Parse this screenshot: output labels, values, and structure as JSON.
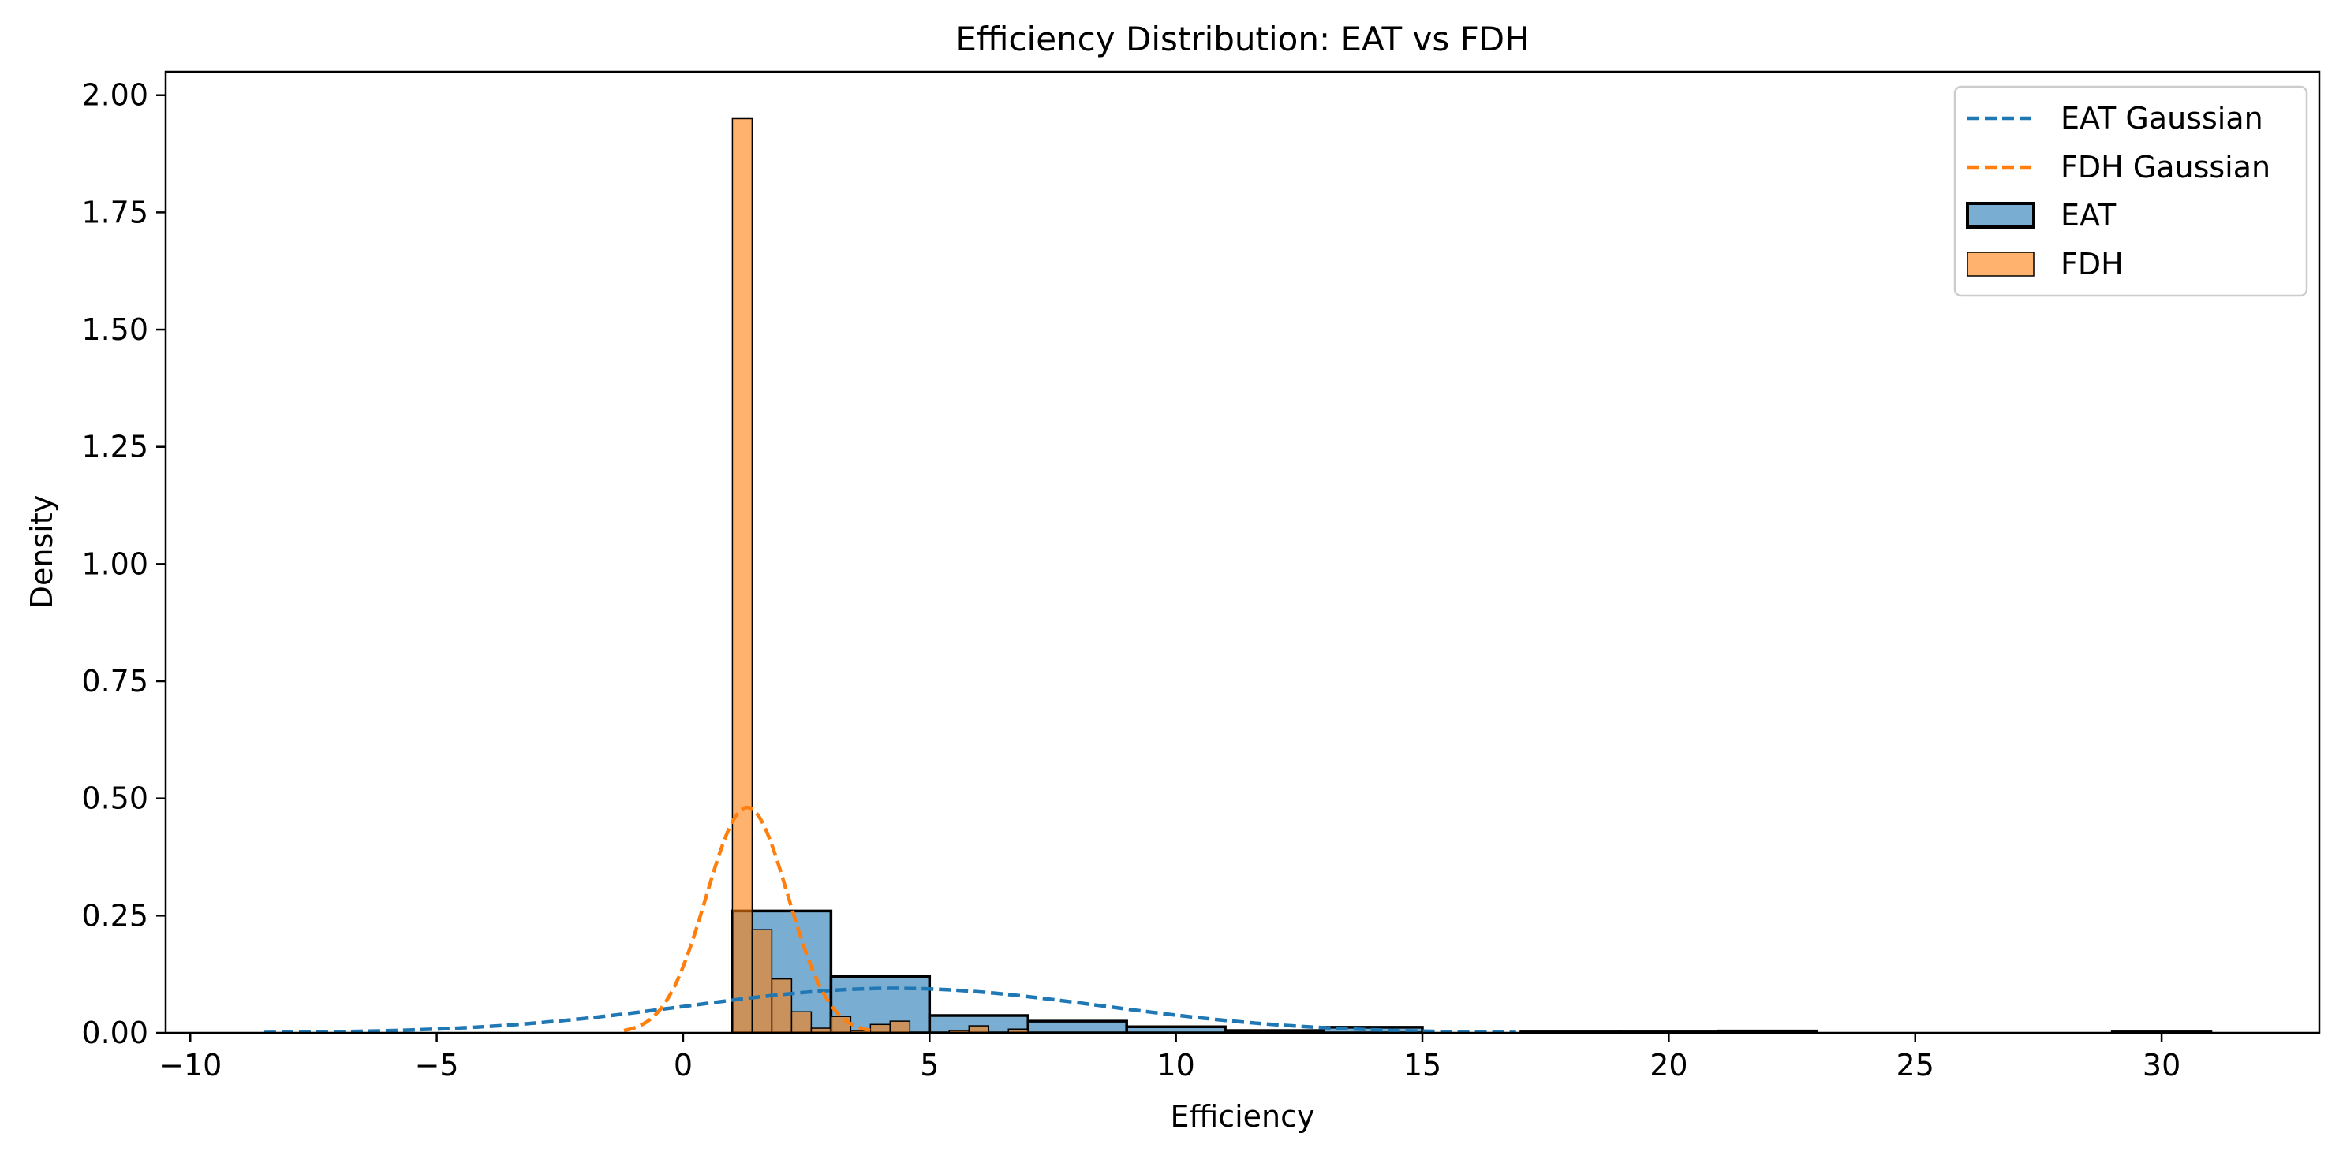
{
  "chart_data": {
    "type": "histogram",
    "title": "Efficiency Distribution: EAT vs FDH",
    "xlabel": "Efficiency",
    "ylabel": "Density",
    "xlim": [
      -10.5,
      33.2
    ],
    "ylim": [
      0,
      2.05
    ],
    "xticks": [
      -10,
      -5,
      0,
      5,
      10,
      15,
      20,
      25,
      30
    ],
    "xtick_labels": [
      "−10",
      "−5",
      "0",
      "5",
      "10",
      "15",
      "20",
      "25",
      "30"
    ],
    "yticks": [
      0,
      0.25,
      0.5,
      0.75,
      1.0,
      1.25,
      1.5,
      1.75,
      2.0
    ],
    "ytick_labels": [
      "0.00",
      "0.25",
      "0.50",
      "0.75",
      "1.00",
      "1.25",
      "1.50",
      "1.75",
      "2.00"
    ],
    "grid": false,
    "legend_position": "top-right",
    "legend": [
      {
        "label": "EAT Gaussian",
        "kind": "dashed-line",
        "color": "#1f77b4"
      },
      {
        "label": "FDH Gaussian",
        "kind": "dashed-line",
        "color": "#ff7f0e"
      },
      {
        "label": "EAT",
        "kind": "patch",
        "color": "#1f77b4"
      },
      {
        "label": "FDH",
        "kind": "patch",
        "color": "#ff7f0e"
      }
    ],
    "series": [
      {
        "name": "EAT",
        "kind": "histogram",
        "color": "#1f77b4",
        "bins": [
          {
            "x0": 1.0,
            "x1": 3.0,
            "density": 0.26
          },
          {
            "x0": 3.0,
            "x1": 5.0,
            "density": 0.12
          },
          {
            "x0": 5.0,
            "x1": 7.0,
            "density": 0.037
          },
          {
            "x0": 7.0,
            "x1": 9.0,
            "density": 0.025
          },
          {
            "x0": 9.0,
            "x1": 11.0,
            "density": 0.013
          },
          {
            "x0": 11.0,
            "x1": 13.0,
            "density": 0.005
          },
          {
            "x0": 13.0,
            "x1": 15.0,
            "density": 0.012
          },
          {
            "x0": 15.0,
            "x1": 17.0,
            "density": 0.0
          },
          {
            "x0": 17.0,
            "x1": 19.0,
            "density": 0.002
          },
          {
            "x0": 19.0,
            "x1": 21.0,
            "density": 0.002
          },
          {
            "x0": 21.0,
            "x1": 23.0,
            "density": 0.004
          },
          {
            "x0": 23.0,
            "x1": 25.0,
            "density": 0.0
          },
          {
            "x0": 25.0,
            "x1": 27.0,
            "density": 0.0
          },
          {
            "x0": 27.0,
            "x1": 29.0,
            "density": 0.0
          },
          {
            "x0": 29.0,
            "x1": 31.0,
            "density": 0.002
          }
        ]
      },
      {
        "name": "FDH",
        "kind": "histogram",
        "color": "#ff7f0e",
        "bins": [
          {
            "x0": 1.0,
            "x1": 1.4,
            "density": 1.95
          },
          {
            "x0": 1.4,
            "x1": 1.8,
            "density": 0.22
          },
          {
            "x0": 1.8,
            "x1": 2.2,
            "density": 0.115
          },
          {
            "x0": 2.2,
            "x1": 2.6,
            "density": 0.045
          },
          {
            "x0": 2.6,
            "x1": 3.0,
            "density": 0.01
          },
          {
            "x0": 3.0,
            "x1": 3.4,
            "density": 0.035
          },
          {
            "x0": 3.4,
            "x1": 3.8,
            "density": 0.005
          },
          {
            "x0": 3.8,
            "x1": 4.2,
            "density": 0.018
          },
          {
            "x0": 4.2,
            "x1": 4.6,
            "density": 0.025
          },
          {
            "x0": 4.6,
            "x1": 5.0,
            "density": 0.0
          },
          {
            "x0": 5.0,
            "x1": 5.4,
            "density": 0.0
          },
          {
            "x0": 5.4,
            "x1": 5.8,
            "density": 0.005
          },
          {
            "x0": 5.8,
            "x1": 6.2,
            "density": 0.015
          },
          {
            "x0": 6.2,
            "x1": 6.6,
            "density": 0.0
          },
          {
            "x0": 6.6,
            "x1": 7.0,
            "density": 0.008
          }
        ]
      },
      {
        "name": "EAT Gaussian",
        "kind": "dashed-line",
        "color": "#1f77b4",
        "mean": 4.3,
        "sd": 4.2,
        "x_range": [
          -8.5,
          16.9
        ]
      },
      {
        "name": "FDH Gaussian",
        "kind": "dashed-line",
        "color": "#ff7f0e",
        "mean": 1.3,
        "sd": 0.83,
        "x_range": [
          -1.2,
          3.8
        ]
      }
    ]
  }
}
